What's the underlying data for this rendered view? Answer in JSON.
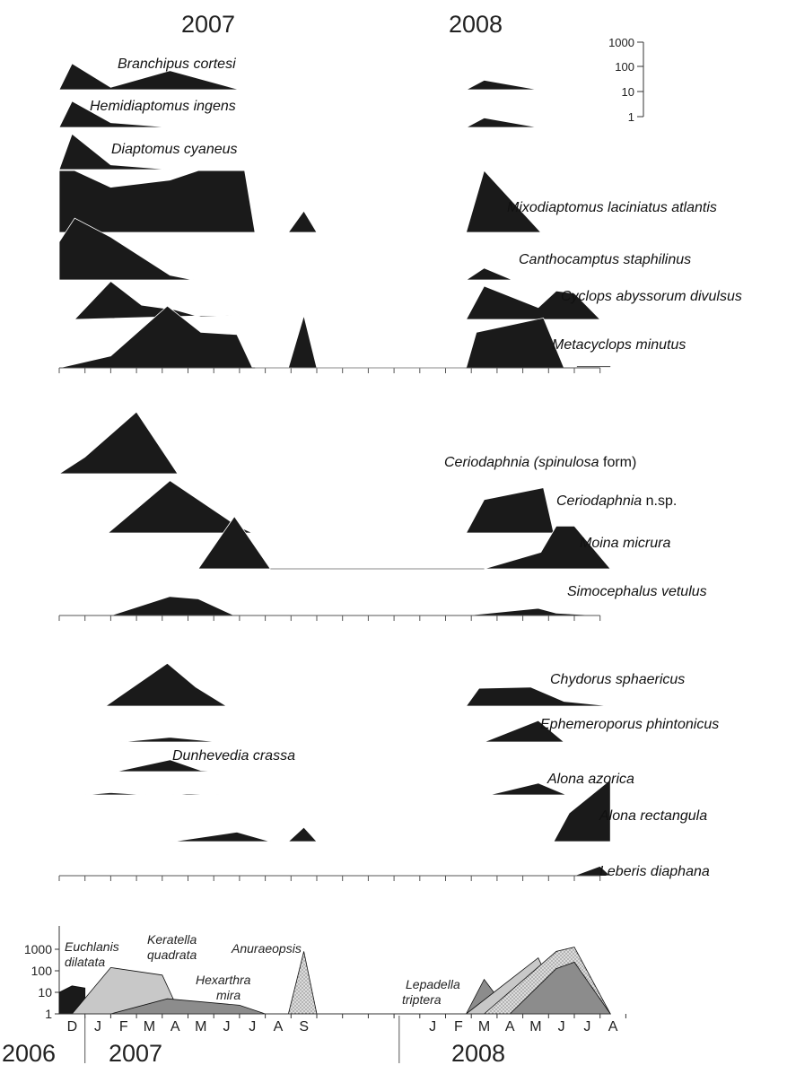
{
  "chart_data": {
    "type": "area",
    "top_years": [
      "2007",
      "2008"
    ],
    "bottom_years": [
      "2006",
      "2007",
      "2008"
    ],
    "months": [
      "D",
      "J",
      "F",
      "M",
      "A",
      "M",
      "J",
      "J",
      "A",
      "S",
      "",
      "",
      "",
      "",
      "J",
      "F",
      "M",
      "A",
      "M",
      "J",
      "J",
      "A"
    ],
    "scale_ticks": [
      "1000",
      "100",
      "10",
      "1"
    ],
    "colors": {
      "fill": "#1a1a1a",
      "light": "#c8c8c8",
      "mid": "#8c8c8c",
      "stipple": "#dcdcdc"
    },
    "panels": [
      {
        "series": [
          {
            "name": "Branchipus cortesi",
            "segments": [
              [
                [
                  0,
                  0
                ],
                [
                  0.5,
                  1.1
                ],
                [
                  2,
                  0.1
                ],
                [
                  4.3,
                  0.8
                ],
                [
                  7,
                  0
                ]
              ],
              [
                [
                  15.8,
                  0
                ],
                [
                  16.5,
                  0.4
                ],
                [
                  18.6,
                  0
                ]
              ]
            ]
          },
          {
            "name": "Hemidiaptomus ingens",
            "segments": [
              [
                [
                  0,
                  0
                ],
                [
                  0.5,
                  1.1
                ],
                [
                  2,
                  0.2
                ],
                [
                  4.3,
                  0
                ]
              ],
              [
                [
                  15.8,
                  0
                ],
                [
                  16.5,
                  0.4
                ],
                [
                  18.6,
                  0
                ]
              ]
            ]
          },
          {
            "name": "Diaptomus cyaneus",
            "segments": [
              [
                [
                  0,
                  0
                ],
                [
                  0.5,
                  1.5
                ],
                [
                  2,
                  0.2
                ],
                [
                  4.3,
                  0
                ]
              ]
            ]
          },
          {
            "name": "Mixodiaptomus laciniatus atlantis",
            "segments": [
              [
                [
                  0,
                  0
                ],
                [
                  0,
                  2.6
                ],
                [
                  0.6,
                  2.6
                ],
                [
                  2,
                  1.9
                ],
                [
                  4.3,
                  2.2
                ],
                [
                  5.4,
                  2.6
                ],
                [
                  7.2,
                  2.6
                ],
                [
                  7.6,
                  0
                ]
              ],
              [
                [
                  8.9,
                  0
                ],
                [
                  9.5,
                  0.9
                ],
                [
                  10,
                  0
                ]
              ],
              [
                [
                  15.8,
                  0
                ],
                [
                  16.5,
                  2.6
                ],
                [
                  18.7,
                  0
                ]
              ]
            ]
          },
          {
            "name": "Canthocamptus staphilinus",
            "segments": [
              [
                [
                  0,
                  0
                ],
                [
                  0,
                  1.6
                ],
                [
                  0.6,
                  2.6
                ],
                [
                  2,
                  1.8
                ],
                [
                  4.3,
                  0.2
                ],
                [
                  5.2,
                  0
                ]
              ],
              [
                [
                  15.8,
                  0
                ],
                [
                  16.5,
                  0.5
                ],
                [
                  17.6,
                  0
                ]
              ]
            ]
          },
          {
            "name": "Cyclops abyssorum divulsus",
            "segments": [
              [
                [
                  0.6,
                  0
                ],
                [
                  2,
                  1.6
                ],
                [
                  3.2,
                  0.6
                ],
                [
                  4.5,
                  0.4
                ],
                [
                  5.5,
                  0.1
                ],
                [
                  7.2,
                  0.2
                ]
              ],
              [
                [
                  15.8,
                  0
                ],
                [
                  16.5,
                  1.4
                ],
                [
                  18.6,
                  0.5
                ],
                [
                  19.3,
                  1.2
                ],
                [
                  20,
                  1.1
                ],
                [
                  21,
                  0
                ]
              ]
            ]
          },
          {
            "name": "Metacyclops minutus",
            "segments": [
              [
                [
                  0,
                  0
                ],
                [
                  2,
                  0.5
                ],
                [
                  4.2,
                  2.6
                ],
                [
                  5.5,
                  1.5
                ],
                [
                  6.9,
                  1.4
                ],
                [
                  7.5,
                  0
                ]
              ],
              [
                [
                  8.9,
                  0
                ],
                [
                  9.5,
                  2.2
                ],
                [
                  10,
                  0
                ]
              ],
              [
                [
                  15.8,
                  0
                ],
                [
                  16.2,
                  1.5
                ],
                [
                  18.8,
                  2.1
                ],
                [
                  19.6,
                  0
                ]
              ],
              [
                [
                  20.1,
                  0.05
                ],
                [
                  21.4,
                  0.05
                ]
              ]
            ]
          }
        ]
      },
      {
        "series": [
          {
            "name": "Ceriodaphnia (spinulosa form)",
            "segments": [
              [
                [
                  0,
                  0
                ],
                [
                  1,
                  0.7
                ],
                [
                  3,
                  2.6
                ],
                [
                  4.6,
                  0
                ]
              ]
            ]
          },
          {
            "name": "Ceriodaphnia n.sp.",
            "segments": [
              [
                [
                  1.9,
                  0
                ],
                [
                  4.3,
                  2.2
                ],
                [
                  6.9,
                  0.3
                ],
                [
                  7.5,
                  0
                ]
              ],
              [
                [
                  15.8,
                  0
                ],
                [
                  16.5,
                  1.4
                ],
                [
                  18.8,
                  1.9
                ],
                [
                  19.2,
                  0
                ]
              ]
            ]
          },
          {
            "name": "Moina micrura",
            "segments": [
              [
                [
                  5.4,
                  0
                ],
                [
                  6.8,
                  2.2
                ],
                [
                  8.2,
                  0
                ]
              ],
              [
                [
                  16.5,
                  0
                ],
                [
                  18.7,
                  0.7
                ],
                [
                  19.3,
                  1.8
                ],
                [
                  20,
                  1.8
                ],
                [
                  21.4,
                  0
                ]
              ]
            ]
          },
          {
            "name": "Simocephalus vetulus",
            "segments": [
              [
                [
                  2,
                  0
                ],
                [
                  4.3,
                  0.8
                ],
                [
                  5.4,
                  0.7
                ],
                [
                  6.8,
                  0
                ]
              ],
              [
                [
                  15.8,
                  0
                ],
                [
                  18.6,
                  0.3
                ],
                [
                  19.3,
                  0.1
                ],
                [
                  21,
                  0
                ]
              ]
            ]
          }
        ]
      },
      {
        "series": [
          {
            "name": "Chydorus sphaericus",
            "segments": [
              [
                [
                  1.8,
                  0
                ],
                [
                  4.2,
                  1.8
                ],
                [
                  5.3,
                  0.8
                ],
                [
                  6.5,
                  0
                ]
              ],
              [
                [
                  15.8,
                  0
                ],
                [
                  16.3,
                  0.75
                ],
                [
                  18.3,
                  0.8
                ],
                [
                  19.6,
                  0.2
                ],
                [
                  21.4,
                  0
                ]
              ]
            ]
          },
          {
            "name": "Ephemeroporus phintonicus",
            "segments": [
              [
                [
                  2.4,
                  0
                ],
                [
                  4.3,
                  0.2
                ],
                [
                  6.2,
                  0
                ]
              ],
              [
                [
                  16.5,
                  0
                ],
                [
                  18.6,
                  0.9
                ],
                [
                  19.6,
                  0
                ]
              ]
            ]
          },
          {
            "name": "Dunhevedia crassa",
            "segments": [
              [
                [
                  2.2,
                  0
                ],
                [
                  4.3,
                  0.5
                ],
                [
                  5.5,
                  0.05
                ],
                [
                  6.2,
                  0
                ]
              ]
            ]
          },
          {
            "name": "Alona azorica",
            "segments": [
              [
                [
                  1,
                  0
                ],
                [
                  2,
                  0.1
                ],
                [
                  3.4,
                  0
                ]
              ],
              [
                [
                  4.4,
                  0
                ],
                [
                  5,
                  0.05
                ],
                [
                  6.2,
                  0
                ]
              ],
              [
                [
                  16.7,
                  0
                ],
                [
                  18.6,
                  0.5
                ],
                [
                  19.7,
                  0
                ]
              ]
            ]
          },
          {
            "name": "Alona rectangula",
            "segments": [
              [
                [
                  4.4,
                  0
                ],
                [
                  6.9,
                  0.4
                ],
                [
                  8.2,
                  0
                ]
              ],
              [
                [
                  8.9,
                  0
                ],
                [
                  9.5,
                  0.6
                ],
                [
                  10,
                  0
                ]
              ],
              [
                [
                  19.2,
                  0
                ],
                [
                  19.8,
                  1.2
                ],
                [
                  21.4,
                  2.6
                ],
                [
                  21.4,
                  0
                ]
              ]
            ]
          },
          {
            "name": "Leberis diaphana",
            "segments": [
              [
                [
                  20,
                  0
                ],
                [
                  21,
                  0.4
                ],
                [
                  21.4,
                  0
                ]
              ]
            ]
          }
        ]
      }
    ],
    "rotifers": {
      "yticks": [
        1000,
        100,
        10,
        1
      ],
      "series": [
        {
          "name": "Euchlanis dilatata",
          "color": "#1a1a1a",
          "points": [
            [
              0,
              0
            ],
            [
              0,
              1
            ],
            [
              0.5,
              1.3
            ],
            [
              1,
              1.2
            ],
            [
              1,
              0
            ]
          ]
        },
        {
          "name": "Keratella quadrata",
          "color": "#c8c8c8",
          "points": [
            [
              0.5,
              0
            ],
            [
              2,
              2.15
            ],
            [
              4,
              1.8
            ],
            [
              4.5,
              0.5
            ],
            [
              5,
              0
            ]
          ]
        },
        {
          "name": "Hexarthra mira",
          "color": "#8c8c8c",
          "points": [
            [
              2,
              0
            ],
            [
              4.2,
              0.7
            ],
            [
              7,
              0.4
            ],
            [
              8,
              0
            ]
          ]
        },
        {
          "name": "Anuraeopsis",
          "color": "#dcdcdc",
          "points": [
            [
              8.9,
              0
            ],
            [
              9.5,
              2.9
            ],
            [
              10,
              0
            ]
          ]
        },
        {
          "name": "Lepadella triptera",
          "color": "#8c8c8c",
          "points": [
            [
              15.8,
              0
            ],
            [
              16.5,
              1.6
            ],
            [
              17.5,
              0
            ]
          ]
        },
        {
          "name": "",
          "color": "#c8c8c8",
          "points": [
            [
              15.8,
              0
            ],
            [
              18.6,
              2.6
            ],
            [
              19.6,
              0
            ]
          ]
        },
        {
          "name": "",
          "color": "#dcdcdc",
          "points": [
            [
              16.5,
              0
            ],
            [
              19.3,
              2.9
            ],
            [
              20,
              3.1
            ],
            [
              21.4,
              0
            ]
          ]
        },
        {
          "name": "",
          "color": "#8c8c8c",
          "points": [
            [
              17.5,
              0
            ],
            [
              19.3,
              2.1
            ],
            [
              20,
              2.4
            ],
            [
              21.4,
              0
            ]
          ]
        }
      ]
    }
  }
}
